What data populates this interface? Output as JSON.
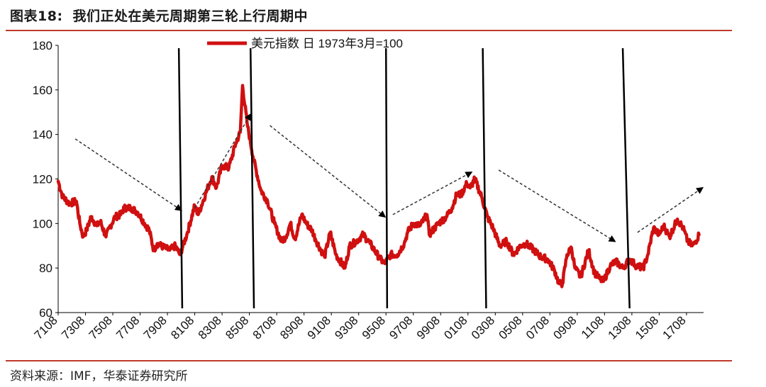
{
  "header": {
    "figure_number": "图表18:",
    "title": "我们正处在美元周期第三轮上行周期中"
  },
  "source": "资料来源：IMF，华泰证券研究所",
  "colors": {
    "series": "#d01010",
    "rule": "#c0392b",
    "cycle_line": "#000000",
    "trend_arrow": "#333333"
  },
  "chart_data": {
    "type": "line",
    "title": "",
    "xlabel": "",
    "ylabel": "",
    "ylim": [
      60,
      180
    ],
    "yticks": [
      60,
      80,
      100,
      120,
      140,
      160,
      180
    ],
    "xtick_labels": [
      "7108",
      "7308",
      "7508",
      "7708",
      "7908",
      "8108",
      "8308",
      "8508",
      "8708",
      "8908",
      "9108",
      "9308",
      "9508",
      "9708",
      "9908",
      "0108",
      "0308",
      "0508",
      "0708",
      "0908",
      "1108",
      "1308",
      "1508",
      "1708"
    ],
    "legend": "美元指数 日 1973年3月=100",
    "legend_position": "top-center",
    "grid": false,
    "series": [
      {
        "name": "美元指数 日 1973年3月=100",
        "points": [
          [
            "1971-08",
            119
          ],
          [
            "1971-12",
            112
          ],
          [
            "1972-06",
            109
          ],
          [
            "1972-12",
            110
          ],
          [
            "1973-03",
            100
          ],
          [
            "1973-06",
            94
          ],
          [
            "1973-09",
            97
          ],
          [
            "1974-01",
            103
          ],
          [
            "1974-06",
            99
          ],
          [
            "1974-09",
            101
          ],
          [
            "1975-02",
            94
          ],
          [
            "1975-05",
            98
          ],
          [
            "1975-10",
            103
          ],
          [
            "1976-03",
            104
          ],
          [
            "1976-06",
            107
          ],
          [
            "1976-12",
            107
          ],
          [
            "1977-06",
            105
          ],
          [
            "1977-12",
            100
          ],
          [
            "1978-04",
            97
          ],
          [
            "1978-08",
            88
          ],
          [
            "1978-11",
            91
          ],
          [
            "1979-06",
            89
          ],
          [
            "1979-10",
            88
          ],
          [
            "1980-03",
            90
          ],
          [
            "1980-07",
            86
          ],
          [
            "1981-01",
            95
          ],
          [
            "1981-08",
            108
          ],
          [
            "1981-11",
            104
          ],
          [
            "1982-06",
            114
          ],
          [
            "1982-11",
            121
          ],
          [
            "1983-03",
            116
          ],
          [
            "1983-08",
            126
          ],
          [
            "1984-02",
            125
          ],
          [
            "1984-08",
            136
          ],
          [
            "1984-12",
            141
          ],
          [
            "1985-02",
            162
          ],
          [
            "1985-06",
            145
          ],
          [
            "1985-12",
            128
          ],
          [
            "1986-06",
            115
          ],
          [
            "1986-12",
            110
          ],
          [
            "1987-06",
            100
          ],
          [
            "1987-12",
            92
          ],
          [
            "1988-04",
            94
          ],
          [
            "1988-08",
            100
          ],
          [
            "1988-12",
            93
          ],
          [
            "1989-06",
            104
          ],
          [
            "1989-10",
            100
          ],
          [
            "1990-03",
            97
          ],
          [
            "1990-06",
            93
          ],
          [
            "1991-02",
            85
          ],
          [
            "1991-07",
            96
          ],
          [
            "1991-12",
            86
          ],
          [
            "1992-08",
            80
          ],
          [
            "1992-12",
            90
          ],
          [
            "1993-06",
            92
          ],
          [
            "1993-12",
            95
          ],
          [
            "1994-06",
            91
          ],
          [
            "1995-03",
            84
          ],
          [
            "1995-07",
            82
          ],
          [
            "1995-12",
            86
          ],
          [
            "1996-06",
            86
          ],
          [
            "1996-12",
            91
          ],
          [
            "1997-03",
            96
          ],
          [
            "1997-08",
            100
          ],
          [
            "1998-02",
            99
          ],
          [
            "1998-08",
            104
          ],
          [
            "1998-10",
            95
          ],
          [
            "1999-06",
            100
          ],
          [
            "2000-01",
            103
          ],
          [
            "2000-06",
            107
          ],
          [
            "2000-10",
            113
          ],
          [
            "2001-02",
            113
          ],
          [
            "2001-07",
            118
          ],
          [
            "2001-10",
            116
          ],
          [
            "2002-02",
            120
          ],
          [
            "2002-08",
            112
          ],
          [
            "2003-01",
            103
          ],
          [
            "2003-06",
            98
          ],
          [
            "2003-12",
            90
          ],
          [
            "2004-06",
            92
          ],
          [
            "2004-12",
            86
          ],
          [
            "2005-06",
            90
          ],
          [
            "2005-11",
            91
          ],
          [
            "2006-06",
            88
          ],
          [
            "2006-12",
            85
          ],
          [
            "2007-06",
            84
          ],
          [
            "2007-12",
            79
          ],
          [
            "2008-04",
            73
          ],
          [
            "2008-07",
            73
          ],
          [
            "2008-11",
            86
          ],
          [
            "2009-03",
            89
          ],
          [
            "2009-06",
            80
          ],
          [
            "2009-11",
            76
          ],
          [
            "2010-06",
            88
          ],
          [
            "2010-11",
            78
          ],
          [
            "2011-04",
            75
          ],
          [
            "2011-07",
            74
          ],
          [
            "2012-01",
            81
          ],
          [
            "2012-06",
            83
          ],
          [
            "2012-12",
            80
          ],
          [
            "2013-06",
            84
          ],
          [
            "2013-12",
            81
          ],
          [
            "2014-06",
            80
          ],
          [
            "2014-10",
            86
          ],
          [
            "2015-03",
            98
          ],
          [
            "2015-08",
            95
          ],
          [
            "2015-12",
            99
          ],
          [
            "2016-05",
            94
          ],
          [
            "2016-12",
            102
          ],
          [
            "2017-05",
            98
          ],
          [
            "2017-09",
            92
          ],
          [
            "2018-01",
            90
          ],
          [
            "2018-03",
            91
          ],
          [
            "2018-07",
            95
          ]
        ]
      }
    ],
    "cycle_boundaries": [
      {
        "top": "1980-06",
        "bottom": "1980-09"
      },
      {
        "top": "1985-09",
        "bottom": "1985-12"
      },
      {
        "top": "1995-08",
        "bottom": "1995-09"
      },
      {
        "top": "2002-09",
        "bottom": "2002-12"
      },
      {
        "top": "2012-12",
        "bottom": "2013-06"
      }
    ],
    "trend_arrows": [
      {
        "direction": "down",
        "from": [
          "1972-11",
          138
        ],
        "to": [
          "1980-08",
          106
        ]
      },
      {
        "direction": "up",
        "from": [
          "1981-08",
          107
        ],
        "to": [
          "1985-09",
          149
        ]
      },
      {
        "direction": "down",
        "from": [
          "1987-02",
          144
        ],
        "to": [
          "1995-07",
          103
        ]
      },
      {
        "direction": "up",
        "from": [
          "1996-02",
          104
        ],
        "to": [
          "2001-11",
          123
        ]
      },
      {
        "direction": "down",
        "from": [
          "2003-11",
          124
        ],
        "to": [
          "2012-05",
          92
        ]
      },
      {
        "direction": "up",
        "from": [
          "2014-01",
          96
        ],
        "to": [
          "2018-10",
          116
        ]
      }
    ]
  }
}
